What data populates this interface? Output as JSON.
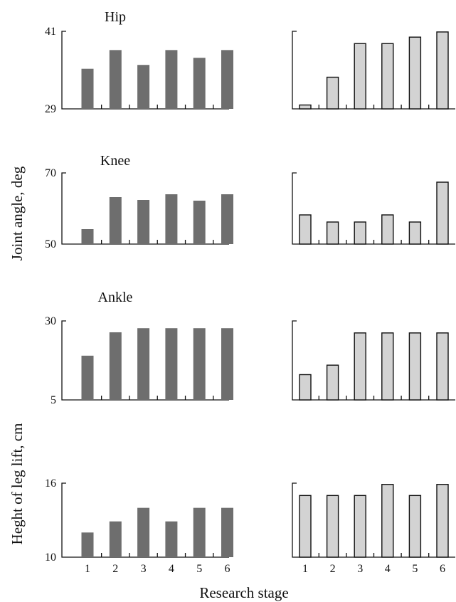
{
  "figure": {
    "ylabel_joint": "Joint angle, deg",
    "ylabel_height": "Heght of leg lift, cm",
    "xlabel": "Research stage"
  },
  "colors": {
    "left_bar": "#6e6e6e",
    "right_bar": "#d3d3d3",
    "axis": "#111111"
  },
  "chart_data": [
    {
      "type": "bar",
      "title": "Hip",
      "categories": [
        "1",
        "2",
        "3",
        "4",
        "5",
        "6"
      ],
      "ylim": [
        29,
        41
      ],
      "yticks": [
        "29",
        "41"
      ],
      "series": [
        {
          "values": [
            35.2,
            38.1,
            35.8,
            38.1,
            36.9,
            38.1
          ]
        }
      ]
    },
    {
      "type": "bar",
      "title": "",
      "categories": [
        "1",
        "2",
        "3",
        "4",
        "5",
        "6"
      ],
      "ylim": [
        29,
        41
      ],
      "yticks": [],
      "series": [
        {
          "values": [
            29.6,
            33.9,
            39.1,
            39.1,
            40.1,
            40.9
          ]
        }
      ]
    },
    {
      "type": "bar",
      "title": "Knee",
      "categories": [
        "1",
        "2",
        "3",
        "4",
        "5",
        "6"
      ],
      "ylim": [
        50,
        70
      ],
      "yticks": [
        "50",
        "70"
      ],
      "series": [
        {
          "values": [
            54.2,
            63.2,
            62.4,
            64.0,
            62.2,
            64.0
          ]
        }
      ]
    },
    {
      "type": "bar",
      "title": "",
      "categories": [
        "1",
        "2",
        "3",
        "4",
        "5",
        "6"
      ],
      "ylim": [
        50,
        70
      ],
      "yticks": [],
      "series": [
        {
          "values": [
            58.2,
            56.2,
            56.2,
            58.2,
            56.2,
            67.4
          ]
        }
      ]
    },
    {
      "type": "bar",
      "title": "Ankle",
      "categories": [
        "1",
        "2",
        "3",
        "4",
        "5",
        "6"
      ],
      "ylim": [
        5,
        30
      ],
      "yticks": [
        "5",
        "30"
      ],
      "series": [
        {
          "values": [
            19.0,
            26.4,
            27.7,
            27.7,
            27.7,
            27.7
          ]
        }
      ]
    },
    {
      "type": "bar",
      "title": "",
      "categories": [
        "1",
        "2",
        "3",
        "4",
        "5",
        "6"
      ],
      "ylim": [
        5,
        30
      ],
      "yticks": [],
      "series": [
        {
          "values": [
            13.0,
            16.0,
            26.2,
            26.2,
            26.2,
            26.2
          ]
        }
      ]
    },
    {
      "type": "bar",
      "title": "",
      "categories": [
        "1",
        "2",
        "3",
        "4",
        "5",
        "6"
      ],
      "ylim": [
        10,
        16
      ],
      "yticks": [
        "10",
        "16"
      ],
      "series": [
        {
          "values": [
            12.0,
            12.9,
            14.0,
            12.9,
            14.0,
            14.0
          ]
        }
      ]
    },
    {
      "type": "bar",
      "title": "",
      "categories": [
        "1",
        "2",
        "3",
        "4",
        "5",
        "6"
      ],
      "ylim": [
        10,
        16
      ],
      "yticks": [],
      "series": [
        {
          "values": [
            15.0,
            15.0,
            15.0,
            15.9,
            15.0,
            15.9
          ]
        }
      ]
    }
  ]
}
